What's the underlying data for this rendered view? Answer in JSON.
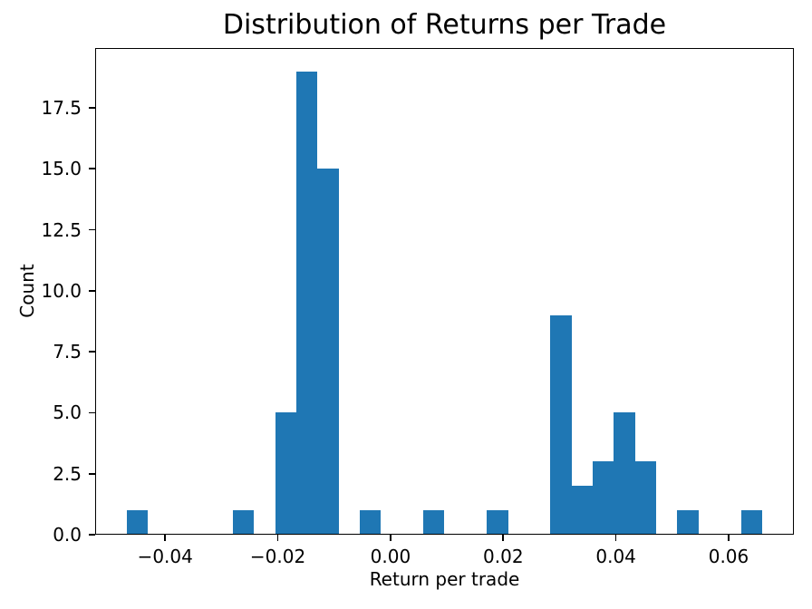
{
  "figure": {
    "background": "#ffffff"
  },
  "chart_data": {
    "type": "bar",
    "subtype": "histogram",
    "title": "Distribution of Returns per Trade",
    "xlabel": "Return per trade",
    "ylabel": "Count",
    "bar_color": "#1f77b4",
    "axis_color": "#000000",
    "grid": false,
    "legend": null,
    "bins": 30,
    "bin_start": -0.04678,
    "bin_width": 0.0037573,
    "counts": [
      1,
      0,
      0,
      0,
      0,
      1,
      0,
      5,
      19,
      15,
      0,
      1,
      0,
      0,
      1,
      0,
      0,
      1,
      0,
      0,
      9,
      2,
      3,
      5,
      3,
      0,
      1,
      0,
      0,
      1
    ],
    "xlim": [
      -0.05242,
      0.07158
    ],
    "ylim": [
      0,
      19.95
    ],
    "xticks": [
      -0.04,
      -0.02,
      0.0,
      0.02,
      0.04,
      0.06
    ],
    "xtick_labels": [
      "−0.04",
      "−0.02",
      "0.00",
      "0.02",
      "0.04",
      "0.06"
    ],
    "yticks": [
      0.0,
      2.5,
      5.0,
      7.5,
      10.0,
      12.5,
      15.0,
      17.5
    ],
    "ytick_labels": [
      "0.0",
      "2.5",
      "5.0",
      "7.5",
      "10.0",
      "12.5",
      "15.0",
      "17.5"
    ]
  }
}
